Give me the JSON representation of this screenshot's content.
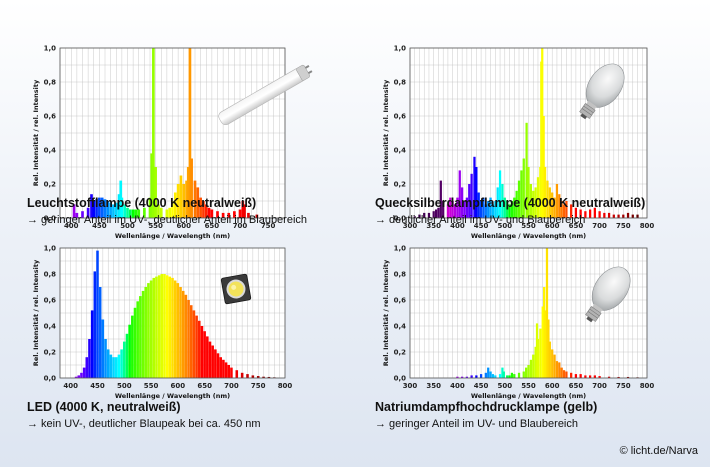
{
  "credit": "© licht.de/Narva",
  "colors": {
    "plot_bg": "#ffffff",
    "grid": "#bdbdbd",
    "frame": "#555555"
  },
  "icons": [
    "fluorescent-tube-icon",
    "hid-bulb-icon",
    "led-chip-icon"
  ],
  "panels": [
    {
      "title": "Leuchtstofflampe (4000 K neutralweiß)",
      "subtitle": "→ geringer Anteil im UV-, deutlicher Anteil im Blaubereich",
      "illustration": "fluorescent-tube-icon"
    },
    {
      "title": "Quecksilberdampflampe (4000 K neutralweiß)",
      "subtitle": "→ deutlicher Anteil im UV- und Blaubereich",
      "illustration": "hid-bulb-icon"
    },
    {
      "title": "LED (4000 K, neutralweiß)",
      "subtitle": "→ kein UV-, deutlicher Blaupeak bei ca. 450 nm",
      "illustration": "led-chip-icon"
    },
    {
      "title": "Natriumdampfhochdrucklampe (gelb)",
      "subtitle": "→ geringer Anteil im UV- und Blaubereich",
      "illustration": "hid-bulb-icon"
    }
  ],
  "chart_data": [
    {
      "type": "bar",
      "xlabel": "Wellenlänge / Wavelength (nm)",
      "ylabel": "Rel. Intensität / rel. Intensity",
      "xlim": [
        380,
        780
      ],
      "ylim": [
        0,
        1.0
      ],
      "xticks": [
        400,
        450,
        500,
        550,
        600,
        650,
        700,
        750
      ],
      "yticks": [
        "0,0",
        "0,2",
        "0,4",
        "0,6",
        "0,8",
        "1,0"
      ],
      "points": [
        [
          405,
          0.08
        ],
        [
          410,
          0.03
        ],
        [
          420,
          0.04
        ],
        [
          430,
          0.06
        ],
        [
          436,
          0.14
        ],
        [
          440,
          0.1
        ],
        [
          445,
          0.11
        ],
        [
          450,
          0.12
        ],
        [
          455,
          0.12
        ],
        [
          460,
          0.11
        ],
        [
          465,
          0.1
        ],
        [
          470,
          0.09
        ],
        [
          475,
          0.08
        ],
        [
          480,
          0.09
        ],
        [
          485,
          0.14
        ],
        [
          488,
          0.22
        ],
        [
          490,
          0.12
        ],
        [
          495,
          0.08
        ],
        [
          500,
          0.06
        ],
        [
          505,
          0.05
        ],
        [
          510,
          0.05
        ],
        [
          515,
          0.05
        ],
        [
          520,
          0.05
        ],
        [
          530,
          0.06
        ],
        [
          540,
          0.12
        ],
        [
          543,
          0.38
        ],
        [
          546,
          1.0
        ],
        [
          550,
          0.3
        ],
        [
          555,
          0.08
        ],
        [
          560,
          0.06
        ],
        [
          570,
          0.05
        ],
        [
          575,
          0.06
        ],
        [
          580,
          0.1
        ],
        [
          585,
          0.15
        ],
        [
          590,
          0.2
        ],
        [
          595,
          0.25
        ],
        [
          600,
          0.2
        ],
        [
          605,
          0.22
        ],
        [
          608,
          0.3
        ],
        [
          611,
          1.0
        ],
        [
          614,
          0.35
        ],
        [
          620,
          0.22
        ],
        [
          625,
          0.18
        ],
        [
          630,
          0.12
        ],
        [
          635,
          0.1
        ],
        [
          640,
          0.08
        ],
        [
          645,
          0.06
        ],
        [
          650,
          0.05
        ],
        [
          660,
          0.04
        ],
        [
          670,
          0.03
        ],
        [
          680,
          0.03
        ],
        [
          690,
          0.04
        ],
        [
          700,
          0.05
        ],
        [
          705,
          0.1
        ],
        [
          708,
          0.08
        ],
        [
          715,
          0.03
        ],
        [
          730,
          0.02
        ]
      ]
    },
    {
      "type": "bar",
      "xlabel": "Wellenlänge / Wavelength (nm)",
      "ylabel": "Rel. Intensität / rel. Intensity",
      "xlim": [
        300,
        800
      ],
      "ylim": [
        0,
        1.0
      ],
      "xticks": [
        300,
        350,
        400,
        450,
        500,
        550,
        600,
        650,
        700,
        750,
        800
      ],
      "yticks": [
        "0,0",
        "0,2",
        "0,4",
        "0,6",
        "0,8",
        "1,0"
      ],
      "points": [
        [
          310,
          0.01
        ],
        [
          320,
          0.02
        ],
        [
          330,
          0.03
        ],
        [
          340,
          0.03
        ],
        [
          350,
          0.04
        ],
        [
          355,
          0.05
        ],
        [
          360,
          0.06
        ],
        [
          365,
          0.22
        ],
        [
          370,
          0.1
        ],
        [
          380,
          0.08
        ],
        [
          385,
          0.12
        ],
        [
          390,
          0.1
        ],
        [
          395,
          0.08
        ],
        [
          400,
          0.12
        ],
        [
          405,
          0.28
        ],
        [
          410,
          0.18
        ],
        [
          415,
          0.1
        ],
        [
          420,
          0.12
        ],
        [
          425,
          0.2
        ],
        [
          430,
          0.26
        ],
        [
          436,
          0.36
        ],
        [
          440,
          0.3
        ],
        [
          445,
          0.15
        ],
        [
          450,
          0.1
        ],
        [
          455,
          0.12
        ],
        [
          460,
          0.08
        ],
        [
          465,
          0.1
        ],
        [
          470,
          0.12
        ],
        [
          475,
          0.08
        ],
        [
          480,
          0.1
        ],
        [
          485,
          0.18
        ],
        [
          490,
          0.28
        ],
        [
          495,
          0.2
        ],
        [
          500,
          0.12
        ],
        [
          505,
          0.1
        ],
        [
          510,
          0.08
        ],
        [
          515,
          0.1
        ],
        [
          520,
          0.12
        ],
        [
          525,
          0.16
        ],
        [
          530,
          0.22
        ],
        [
          535,
          0.28
        ],
        [
          540,
          0.35
        ],
        [
          546,
          0.56
        ],
        [
          550,
          0.3
        ],
        [
          555,
          0.2
        ],
        [
          560,
          0.16
        ],
        [
          565,
          0.18
        ],
        [
          570,
          0.24
        ],
        [
          575,
          0.3
        ],
        [
          577,
          0.92
        ],
        [
          579,
          1.0
        ],
        [
          582,
          0.6
        ],
        [
          585,
          0.3
        ],
        [
          590,
          0.22
        ],
        [
          595,
          0.18
        ],
        [
          600,
          0.15
        ],
        [
          605,
          0.12
        ],
        [
          610,
          0.2
        ],
        [
          615,
          0.14
        ],
        [
          620,
          0.1
        ],
        [
          625,
          0.08
        ],
        [
          630,
          0.1
        ],
        [
          640,
          0.08
        ],
        [
          650,
          0.06
        ],
        [
          660,
          0.05
        ],
        [
          670,
          0.04
        ],
        [
          680,
          0.05
        ],
        [
          690,
          0.06
        ],
        [
          700,
          0.04
        ],
        [
          710,
          0.03
        ],
        [
          720,
          0.03
        ],
        [
          730,
          0.02
        ],
        [
          740,
          0.02
        ],
        [
          750,
          0.02
        ],
        [
          760,
          0.03
        ],
        [
          770,
          0.02
        ],
        [
          780,
          0.02
        ]
      ]
    },
    {
      "type": "bar",
      "xlabel": "Wellenlänge / Wavelength (nm)",
      "ylabel": "Rel. Intensität / rel. Intensity",
      "xlim": [
        380,
        800
      ],
      "ylim": [
        0,
        1.0
      ],
      "xticks": [
        400,
        450,
        500,
        550,
        600,
        650,
        700,
        750,
        800
      ],
      "yticks": [
        "0,0",
        "0,2",
        "0,4",
        "0,6",
        "0,8",
        "1,0"
      ],
      "points": [
        [
          410,
          0.01
        ],
        [
          415,
          0.02
        ],
        [
          420,
          0.04
        ],
        [
          425,
          0.08
        ],
        [
          430,
          0.16
        ],
        [
          435,
          0.3
        ],
        [
          440,
          0.52
        ],
        [
          445,
          0.82
        ],
        [
          450,
          0.98
        ],
        [
          455,
          0.7
        ],
        [
          460,
          0.45
        ],
        [
          465,
          0.3
        ],
        [
          470,
          0.22
        ],
        [
          475,
          0.18
        ],
        [
          480,
          0.16
        ],
        [
          485,
          0.16
        ],
        [
          490,
          0.18
        ],
        [
          495,
          0.22
        ],
        [
          500,
          0.28
        ],
        [
          505,
          0.34
        ],
        [
          510,
          0.41
        ],
        [
          515,
          0.48
        ],
        [
          520,
          0.54
        ],
        [
          525,
          0.59
        ],
        [
          530,
          0.63
        ],
        [
          535,
          0.67
        ],
        [
          540,
          0.7
        ],
        [
          545,
          0.73
        ],
        [
          550,
          0.75
        ],
        [
          555,
          0.77
        ],
        [
          560,
          0.78
        ],
        [
          565,
          0.79
        ],
        [
          570,
          0.8
        ],
        [
          575,
          0.8
        ],
        [
          580,
          0.79
        ],
        [
          585,
          0.78
        ],
        [
          590,
          0.77
        ],
        [
          595,
          0.75
        ],
        [
          600,
          0.73
        ],
        [
          605,
          0.7
        ],
        [
          610,
          0.67
        ],
        [
          615,
          0.64
        ],
        [
          620,
          0.6
        ],
        [
          625,
          0.56
        ],
        [
          630,
          0.52
        ],
        [
          635,
          0.48
        ],
        [
          640,
          0.44
        ],
        [
          645,
          0.4
        ],
        [
          650,
          0.36
        ],
        [
          655,
          0.32
        ],
        [
          660,
          0.28
        ],
        [
          665,
          0.25
        ],
        [
          670,
          0.22
        ],
        [
          675,
          0.19
        ],
        [
          680,
          0.16
        ],
        [
          685,
          0.14
        ],
        [
          690,
          0.12
        ],
        [
          695,
          0.1
        ],
        [
          700,
          0.08
        ],
        [
          710,
          0.06
        ],
        [
          720,
          0.04
        ],
        [
          730,
          0.03
        ],
        [
          740,
          0.02
        ],
        [
          750,
          0.015
        ],
        [
          760,
          0.01
        ],
        [
          770,
          0.008
        ],
        [
          780,
          0.005
        ]
      ]
    },
    {
      "type": "bar",
      "xlabel": "Wellenlänge / Wavelength (nm)",
      "ylabel": "Rel. Intensität / rel. Intensity",
      "xlim": [
        300,
        800
      ],
      "ylim": [
        0,
        1.0
      ],
      "xticks": [
        300,
        350,
        400,
        450,
        500,
        550,
        600,
        650,
        700,
        750,
        800
      ],
      "yticks": [
        "0,0",
        "0,2",
        "0,4",
        "0,6",
        "0,8",
        "1,0"
      ],
      "points": [
        [
          400,
          0.01
        ],
        [
          410,
          0.01
        ],
        [
          420,
          0.01
        ],
        [
          430,
          0.02
        ],
        [
          440,
          0.02
        ],
        [
          450,
          0.03
        ],
        [
          460,
          0.04
        ],
        [
          465,
          0.08
        ],
        [
          470,
          0.05
        ],
        [
          475,
          0.03
        ],
        [
          480,
          0.02
        ],
        [
          490,
          0.03
        ],
        [
          495,
          0.08
        ],
        [
          498,
          0.05
        ],
        [
          505,
          0.02
        ],
        [
          510,
          0.02
        ],
        [
          515,
          0.04
        ],
        [
          520,
          0.03
        ],
        [
          530,
          0.04
        ],
        [
          540,
          0.05
        ],
        [
          545,
          0.08
        ],
        [
          550,
          0.1
        ],
        [
          555,
          0.14
        ],
        [
          560,
          0.18
        ],
        [
          565,
          0.24
        ],
        [
          568,
          0.42
        ],
        [
          570,
          0.3
        ],
        [
          575,
          0.38
        ],
        [
          580,
          0.55
        ],
        [
          583,
          0.7
        ],
        [
          585,
          0.52
        ],
        [
          589,
          1.0
        ],
        [
          592,
          0.45
        ],
        [
          595,
          0.28
        ],
        [
          600,
          0.22
        ],
        [
          605,
          0.18
        ],
        [
          610,
          0.13
        ],
        [
          615,
          0.12
        ],
        [
          620,
          0.08
        ],
        [
          625,
          0.06
        ],
        [
          630,
          0.05
        ],
        [
          640,
          0.04
        ],
        [
          650,
          0.03
        ],
        [
          660,
          0.03
        ],
        [
          670,
          0.02
        ],
        [
          680,
          0.02
        ],
        [
          690,
          0.02
        ],
        [
          700,
          0.015
        ],
        [
          720,
          0.01
        ],
        [
          740,
          0.008
        ],
        [
          760,
          0.008
        ],
        [
          780,
          0.005
        ]
      ]
    }
  ]
}
